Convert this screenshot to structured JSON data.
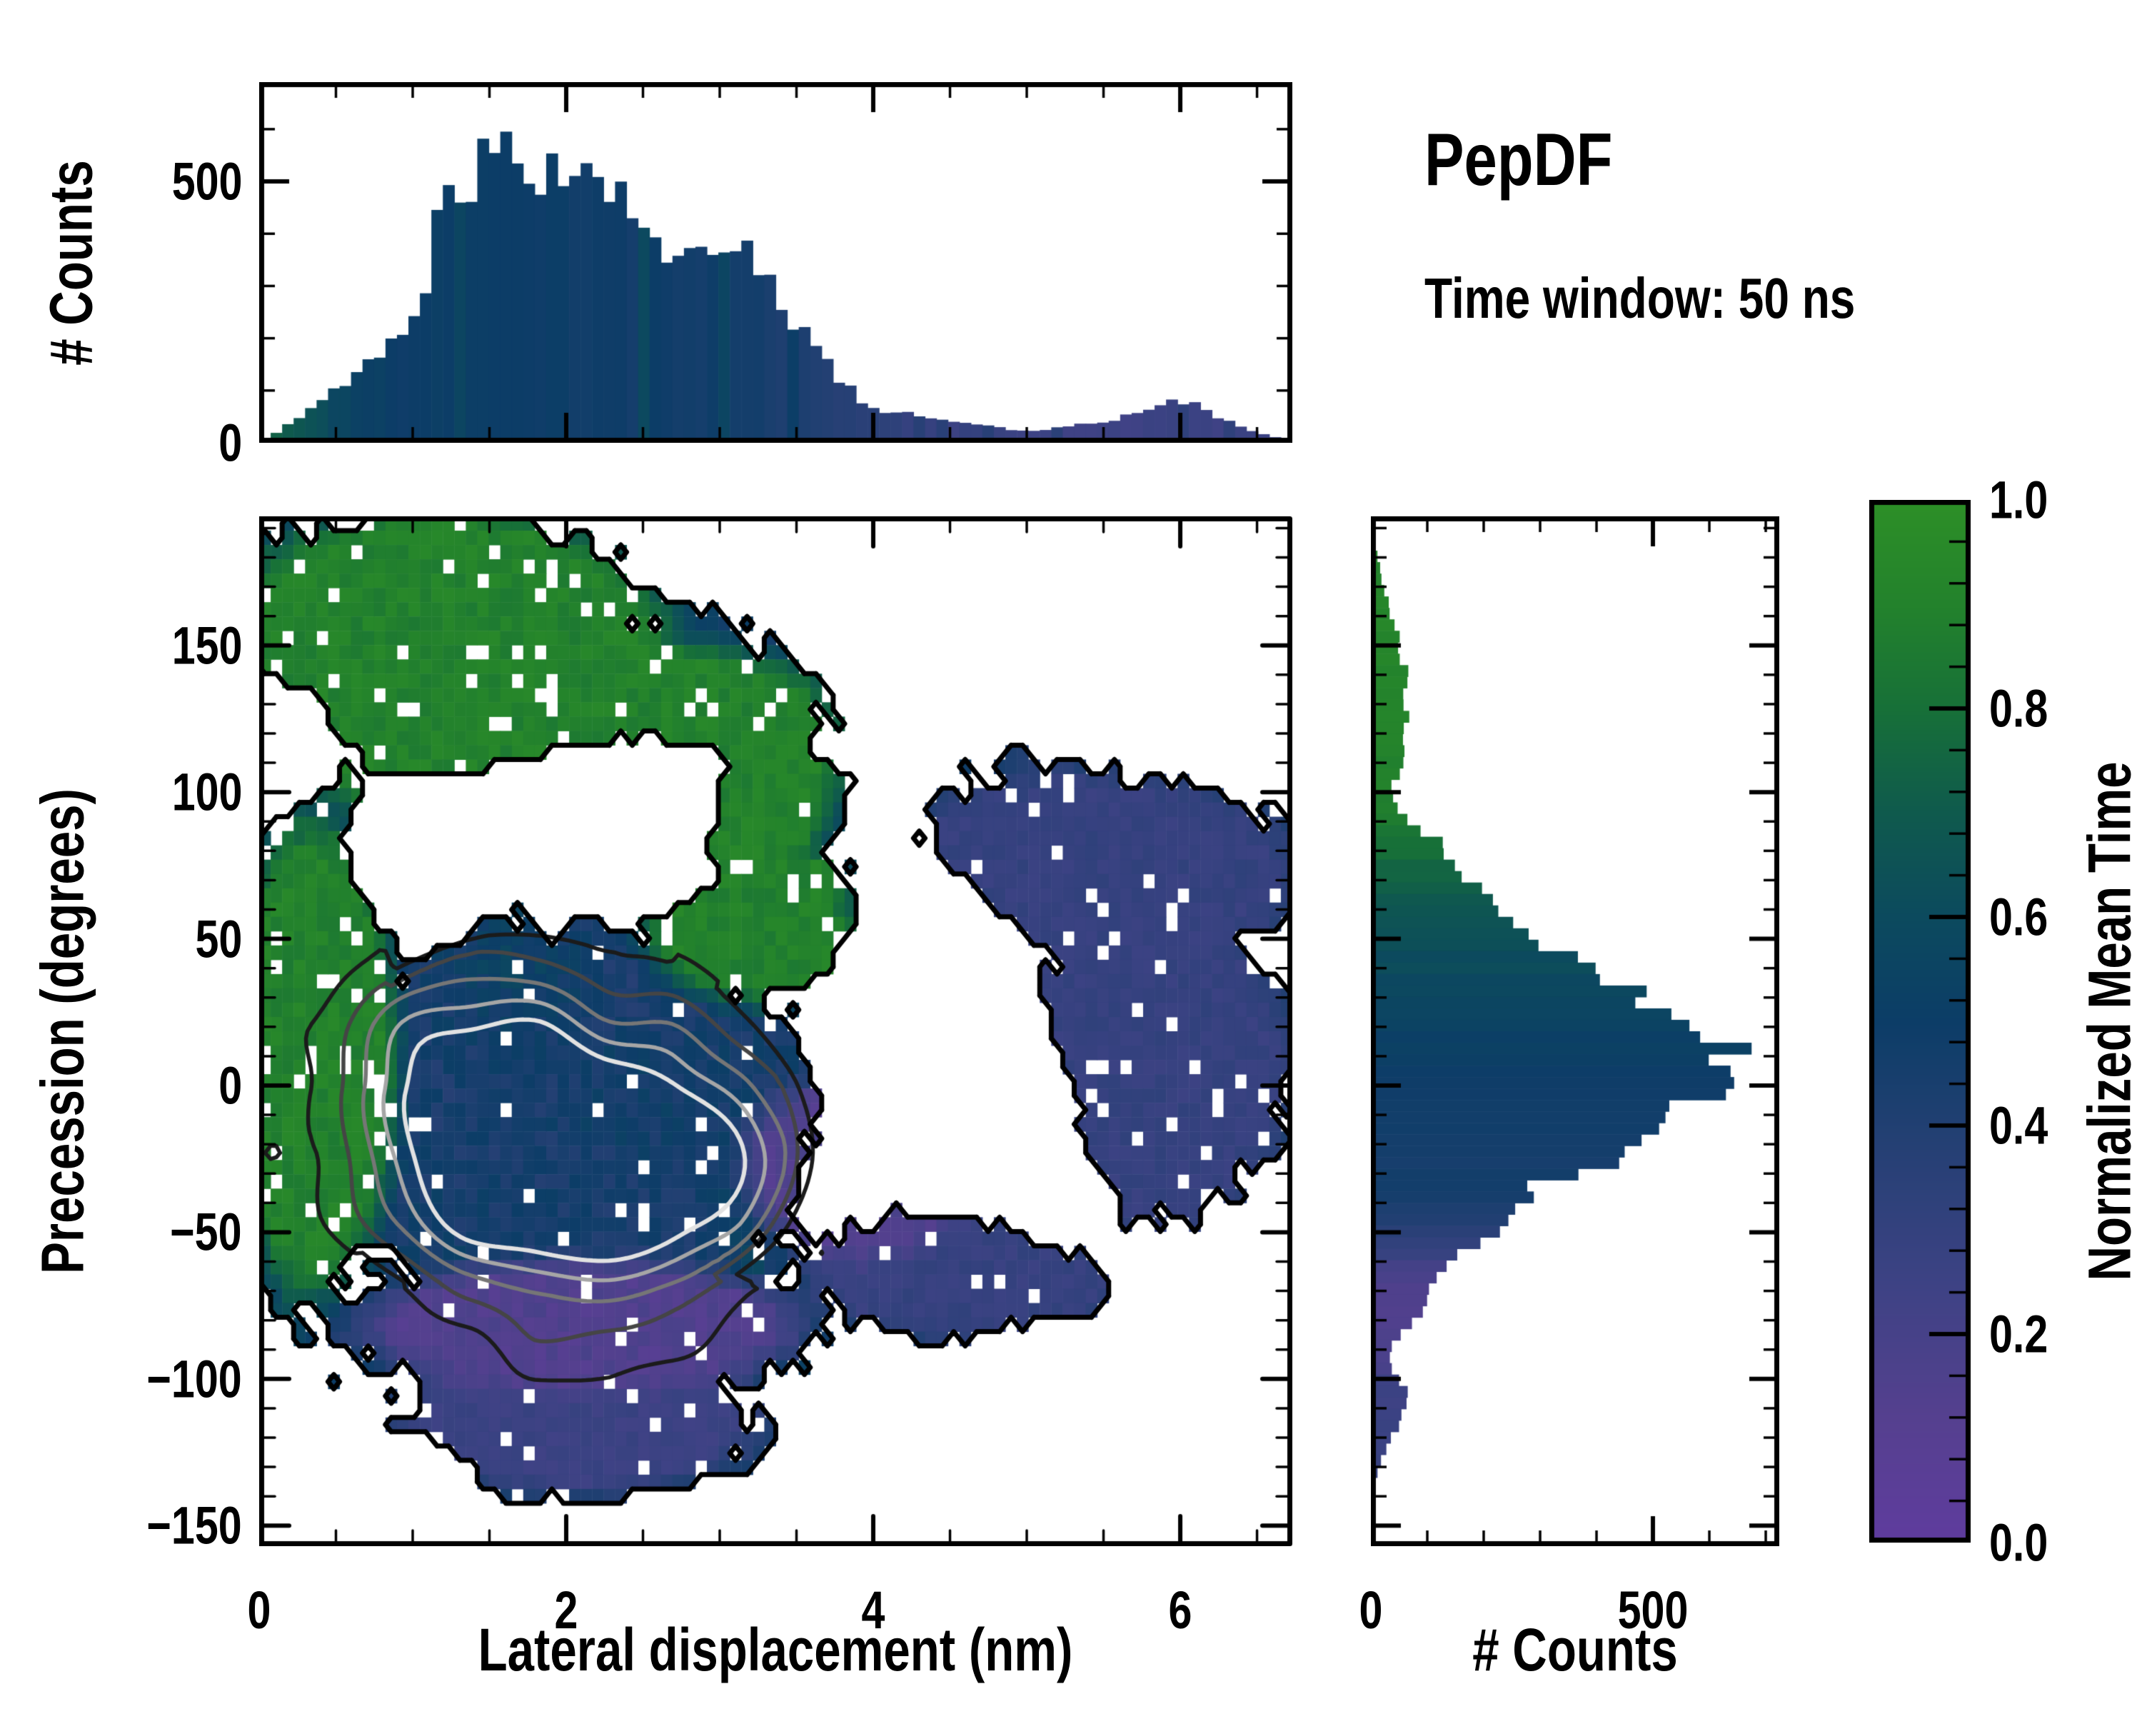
{
  "header": {
    "title": "PepDF",
    "subtitle": "Time window: 50 ns"
  },
  "colors": {
    "background": "#ffffff",
    "axis": "#000000",
    "colormap_stops": [
      [
        0.0,
        "#5f3c9e"
      ],
      [
        0.12,
        "#55408f"
      ],
      [
        0.25,
        "#3d4284"
      ],
      [
        0.38,
        "#254074"
      ],
      [
        0.5,
        "#0c3d67"
      ],
      [
        0.6,
        "#0c4a5e"
      ],
      [
        0.7,
        "#0f5a4d"
      ],
      [
        0.8,
        "#177038"
      ],
      [
        0.9,
        "#23822c"
      ],
      [
        1.0,
        "#2d8f27"
      ]
    ],
    "outer_contour": "#000000",
    "inner_contour_levels": [
      {
        "level": 0.18,
        "color": "#1b1b1b",
        "width": 5.5
      },
      {
        "level": 0.32,
        "color": "#454545",
        "width": 5.5
      },
      {
        "level": 0.46,
        "color": "#767676",
        "width": 5.5
      },
      {
        "level": 0.6,
        "color": "#a6a6a6",
        "width": 5.5
      },
      {
        "level": 0.74,
        "color": "#e2e2e2",
        "width": 6
      }
    ]
  },
  "chart_data": [
    {
      "type": "bar",
      "name": "top-histogram",
      "orientation": "vertical",
      "ylabel": "# Counts",
      "ylim": [
        0,
        690
      ],
      "yticks": [
        {
          "v": 0,
          "label": "0"
        },
        {
          "v": 500,
          "label": "500"
        }
      ],
      "yminor_step": 100,
      "xlim": [
        0,
        6.73
      ],
      "xmajor": [
        0,
        2,
        4,
        6
      ],
      "xminor_step": 0.5,
      "bins": 90,
      "counts_keypoints": [
        [
          0,
          4
        ],
        [
          0.15,
          25
        ],
        [
          0.3,
          58
        ],
        [
          0.45,
          95
        ],
        [
          0.6,
          120
        ],
        [
          0.75,
          155
        ],
        [
          0.88,
          200
        ],
        [
          0.98,
          245
        ],
        [
          1.08,
          310
        ],
        [
          1.15,
          400
        ],
        [
          1.22,
          455
        ],
        [
          1.3,
          490
        ],
        [
          1.4,
          515
        ],
        [
          1.5,
          545
        ],
        [
          1.57,
          592
        ],
        [
          1.63,
          532
        ],
        [
          1.7,
          558
        ],
        [
          1.78,
          540
        ],
        [
          1.85,
          520
        ],
        [
          1.95,
          512
        ],
        [
          2.05,
          540
        ],
        [
          2.15,
          498
        ],
        [
          2.25,
          488
        ],
        [
          2.35,
          472
        ],
        [
          2.45,
          460
        ],
        [
          2.55,
          435
        ],
        [
          2.62,
          352
        ],
        [
          2.7,
          382
        ],
        [
          2.8,
          402
        ],
        [
          2.9,
          395
        ],
        [
          3.0,
          378
        ],
        [
          3.08,
          342
        ],
        [
          3.16,
          360
        ],
        [
          3.25,
          330
        ],
        [
          3.35,
          298
        ],
        [
          3.45,
          250
        ],
        [
          3.55,
          205
        ],
        [
          3.65,
          168
        ],
        [
          3.75,
          130
        ],
        [
          3.85,
          100
        ],
        [
          3.95,
          78
        ],
        [
          4.1,
          60
        ],
        [
          4.25,
          54
        ],
        [
          4.4,
          50
        ],
        [
          4.55,
          42
        ],
        [
          4.7,
          35
        ],
        [
          4.85,
          28
        ],
        [
          5.0,
          22
        ],
        [
          5.15,
          26
        ],
        [
          5.3,
          32
        ],
        [
          5.45,
          38
        ],
        [
          5.6,
          48
        ],
        [
          5.75,
          60
        ],
        [
          5.9,
          72
        ],
        [
          6.0,
          82
        ],
        [
          6.1,
          72
        ],
        [
          6.2,
          55
        ],
        [
          6.3,
          42
        ],
        [
          6.45,
          26
        ],
        [
          6.6,
          12
        ],
        [
          6.73,
          5
        ]
      ],
      "color_keypoints": [
        [
          0,
          0.8
        ],
        [
          0.15,
          0.72
        ],
        [
          0.3,
          0.64
        ],
        [
          0.5,
          0.58
        ],
        [
          0.7,
          0.54
        ],
        [
          0.9,
          0.51
        ],
        [
          1.1,
          0.5
        ],
        [
          1.5,
          0.49
        ],
        [
          2.0,
          0.48
        ],
        [
          2.5,
          0.48
        ],
        [
          3.0,
          0.47
        ],
        [
          3.3,
          0.45
        ],
        [
          3.6,
          0.42
        ],
        [
          3.9,
          0.36
        ],
        [
          4.2,
          0.3
        ],
        [
          4.5,
          0.28
        ],
        [
          5.0,
          0.26
        ],
        [
          5.5,
          0.25
        ],
        [
          6.0,
          0.25
        ],
        [
          6.73,
          0.26
        ]
      ]
    },
    {
      "type": "heatmap",
      "name": "main-heatmap",
      "xlabel": "Lateral displacement (nm)",
      "ylabel": "Precession (degrees)",
      "xlim": [
        0,
        6.73
      ],
      "ylim": [
        -157,
        194
      ],
      "xticks": [
        {
          "v": 0,
          "label": "0"
        },
        {
          "v": 2,
          "label": "2"
        },
        {
          "v": 4,
          "label": "4"
        },
        {
          "v": 6,
          "label": "6"
        }
      ],
      "yticks": [
        {
          "v": 150,
          "label": "150"
        },
        {
          "v": 100,
          "label": "100"
        },
        {
          "v": 50,
          "label": "50"
        },
        {
          "v": 0,
          "label": "0"
        },
        {
          "v": -50,
          "label": "−50"
        },
        {
          "v": -100,
          "label": "−100"
        },
        {
          "v": -150,
          "label": "−150"
        }
      ],
      "xminor_step": 0.5,
      "yminor_step": 10,
      "value_label": "Normalized Mean Time",
      "heatmap": {
        "nx": 90,
        "ny": 72,
        "mask_blobs": [
          [
            1.1,
            150,
            1.5,
            50
          ],
          [
            2.4,
            125,
            1.4,
            35
          ],
          [
            3.0,
            95,
            0.9,
            30
          ],
          [
            0.35,
            30,
            0.55,
            120
          ],
          [
            1.9,
            -15,
            1.75,
            72
          ],
          [
            3.4,
            55,
            0.9,
            28
          ],
          [
            5.4,
            70,
            1.5,
            38
          ],
          [
            5.7,
            5,
            1.1,
            65
          ],
          [
            4.6,
            -62,
            1.1,
            25
          ],
          [
            2.1,
            -82,
            1.8,
            22
          ],
          [
            2.1,
            -112,
            1.25,
            28
          ]
        ],
        "mask_holes": [
          [
            2.45,
            100,
            0.8,
            26
          ],
          [
            4.5,
            40,
            0.5,
            30
          ],
          [
            4.95,
            -15,
            0.55,
            35
          ],
          [
            4.2,
            42,
            0.4,
            35
          ],
          [
            5.1,
            -35,
            0.4,
            22
          ],
          [
            0.1,
            115,
            0.4,
            22
          ],
          [
            0.95,
            80,
            0.35,
            18
          ]
        ],
        "green_blobs": [
          [
            1.2,
            145,
            1.7,
            60
          ],
          [
            2.6,
            115,
            1.4,
            40
          ],
          [
            3.35,
            55,
            0.95,
            30
          ],
          [
            0.35,
            10,
            0.6,
            90
          ],
          [
            3.0,
            95,
            0.8,
            28
          ]
        ],
        "indigo_blobs": [
          [
            5.4,
            70,
            1.6,
            42
          ],
          [
            5.7,
            5,
            1.2,
            70
          ],
          [
            4.6,
            -62,
            1.2,
            28
          ]
        ],
        "purple_blobs": [
          [
            3.9,
            -28,
            0.8,
            34
          ],
          [
            2.1,
            -82,
            1.55,
            24
          ]
        ],
        "bottom_blob": [
          2.1,
          -112,
          1.3,
          30
        ],
        "value_green": 0.9,
        "value_core": 0.47,
        "value_indigo": 0.28,
        "value_purple": 0.09,
        "value_bottom": 0.26,
        "missing_fraction": 0.05
      },
      "density_blobs": [
        [
          1.85,
          -22,
          1.15,
          52,
          1.0
        ],
        [
          2.7,
          -30,
          0.8,
          38,
          0.55
        ],
        [
          1.2,
          5,
          0.7,
          45,
          0.35
        ]
      ]
    },
    {
      "type": "bar",
      "name": "right-histogram",
      "orientation": "horizontal",
      "xlabel": "# Counts",
      "xlim": [
        0,
        724
      ],
      "xticks": [
        {
          "v": 0,
          "label": "0"
        },
        {
          "v": 500,
          "label": "500"
        }
      ],
      "xminor_step": 100,
      "ylim": [
        -157,
        194
      ],
      "ymajor_step": 50,
      "yminor_step": 10,
      "bins": 90,
      "counts_keypoints": [
        [
          -140,
          0
        ],
        [
          -135,
          5
        ],
        [
          -130,
          14
        ],
        [
          -125,
          25
        ],
        [
          -120,
          38
        ],
        [
          -115,
          48
        ],
        [
          -110,
          58
        ],
        [
          -105,
          62
        ],
        [
          -100,
          55
        ],
        [
          -96,
          38
        ],
        [
          -92,
          30
        ],
        [
          -88,
          40
        ],
        [
          -84,
          58
        ],
        [
          -80,
          72
        ],
        [
          -76,
          90
        ],
        [
          -72,
          106
        ],
        [
          -68,
          118
        ],
        [
          -64,
          126
        ],
        [
          -60,
          138
        ],
        [
          -56,
          161
        ],
        [
          -52,
          190
        ],
        [
          -48,
          220
        ],
        [
          -44,
          245
        ],
        [
          -40,
          258
        ],
        [
          -36,
          292
        ],
        [
          -32,
          327
        ],
        [
          -29,
          420
        ],
        [
          -26,
          470
        ],
        [
          -23,
          486
        ],
        [
          -20,
          455
        ],
        [
          -17,
          500
        ],
        [
          -14,
          525
        ],
        [
          -11,
          532
        ],
        [
          -8,
          548
        ],
        [
          -5,
          562
        ],
        [
          -2,
          575
        ],
        [
          1,
          590
        ],
        [
          4,
          615
        ],
        [
          7,
          650
        ],
        [
          10,
          638
        ],
        [
          13,
          620
        ],
        [
          16,
          580
        ],
        [
          19,
          550
        ],
        [
          22,
          520
        ],
        [
          25,
          495
        ],
        [
          28,
          470
        ],
        [
          32,
          448
        ],
        [
          36,
          420
        ],
        [
          40,
          392
        ],
        [
          44,
          365
        ],
        [
          48,
          330
        ],
        [
          52,
          295
        ],
        [
          56,
          262
        ],
        [
          60,
          230
        ],
        [
          64,
          205
        ],
        [
          68,
          185
        ],
        [
          72,
          162
        ],
        [
          76,
          150
        ],
        [
          80,
          132
        ],
        [
          84,
          110
        ],
        [
          88,
          90
        ],
        [
          92,
          62
        ],
        [
          96,
          45
        ],
        [
          100,
          34
        ],
        [
          104,
          44
        ],
        [
          108,
          52
        ],
        [
          112,
          56
        ],
        [
          116,
          60
        ],
        [
          120,
          63
        ],
        [
          124,
          60
        ],
        [
          128,
          66
        ],
        [
          132,
          62
        ],
        [
          136,
          58
        ],
        [
          140,
          63
        ],
        [
          144,
          58
        ],
        [
          148,
          55
        ],
        [
          152,
          48
        ],
        [
          156,
          42
        ],
        [
          160,
          38
        ],
        [
          164,
          33
        ],
        [
          168,
          27
        ],
        [
          172,
          21
        ],
        [
          176,
          16
        ],
        [
          180,
          11
        ],
        [
          185,
          7
        ]
      ],
      "color_keypoints": [
        [
          -140,
          0.27
        ],
        [
          -125,
          0.27
        ],
        [
          -110,
          0.26
        ],
        [
          -100,
          0.23
        ],
        [
          -92,
          0.18
        ],
        [
          -84,
          0.16
        ],
        [
          -76,
          0.15
        ],
        [
          -70,
          0.16
        ],
        [
          -64,
          0.2
        ],
        [
          -58,
          0.26
        ],
        [
          -52,
          0.33
        ],
        [
          -46,
          0.4
        ],
        [
          -40,
          0.44
        ],
        [
          -30,
          0.46
        ],
        [
          -20,
          0.47
        ],
        [
          -10,
          0.48
        ],
        [
          0,
          0.5
        ],
        [
          10,
          0.51
        ],
        [
          20,
          0.53
        ],
        [
          30,
          0.56
        ],
        [
          40,
          0.6
        ],
        [
          50,
          0.63
        ],
        [
          58,
          0.66
        ],
        [
          66,
          0.7
        ],
        [
          74,
          0.76
        ],
        [
          82,
          0.8
        ],
        [
          90,
          0.85
        ],
        [
          98,
          0.88
        ],
        [
          110,
          0.9
        ],
        [
          150,
          0.92
        ],
        [
          185,
          0.92
        ]
      ]
    },
    {
      "type": "colorbar",
      "name": "colorbar",
      "label": "Normalized Mean Time",
      "range": [
        0.0,
        1.0
      ],
      "ticks": [
        {
          "v": 0.0,
          "label": "0.0"
        },
        {
          "v": 0.2,
          "label": "0.2"
        },
        {
          "v": 0.4,
          "label": "0.4"
        },
        {
          "v": 0.6,
          "label": "0.6"
        },
        {
          "v": 0.8,
          "label": "0.8"
        },
        {
          "v": 1.0,
          "label": "1.0"
        }
      ],
      "minor_step": 0.04
    }
  ]
}
